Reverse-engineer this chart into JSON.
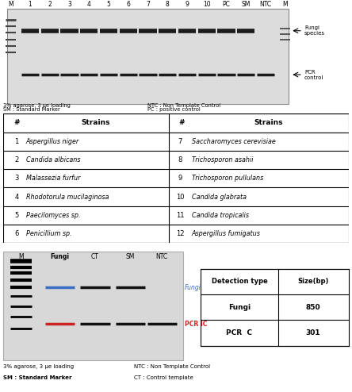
{
  "gel_labels_top": [
    "M",
    "1",
    "2",
    "3",
    "4",
    "5",
    "6",
    "7",
    "8",
    "9",
    "10",
    "PC",
    "SM",
    "NTC",
    "M"
  ],
  "gel_bg": "#dcdcdc",
  "band_row1_color": "#1a1a1a",
  "band_row2_color": "#1a1a1a",
  "marker_color": "#444444",
  "arrow_label1": "Fungi\nspecies",
  "arrow_label2": "PCR\ncontrol",
  "note_line1": "3% agarose, 3 μe loading",
  "note_line2": "SM : Standard Marker",
  "note_line3": "NTC : Non Template Control",
  "note_line4": "PC : positive control",
  "table_rows": [
    [
      "1",
      "Aspergillus niger",
      "7",
      "Saccharomyces cerevisiae"
    ],
    [
      "2",
      "Candida albicans",
      "8",
      "Trichosporon asahii"
    ],
    [
      "3",
      "Malassezia furfur",
      "9",
      "Trichosporon pullulans"
    ],
    [
      "4",
      "Rhodotorula mucilaginosa",
      "10",
      "Candida glabrata"
    ],
    [
      "5",
      "Paecilomyces sp.",
      "11",
      "Candida tropicalis"
    ],
    [
      "6",
      "Penicillium sp.",
      "12",
      "Aspergillus fumigatus"
    ]
  ],
  "diagram_labels_top": [
    "M",
    "Fungi",
    "CT",
    "SM",
    "NTC"
  ],
  "diagram_bg": "#d8d8d8",
  "fungi_line_color": "#3a6fc4",
  "pcric_line_color": "#cc2222",
  "black_line_color": "#111111",
  "fungi_label_color": "#3a6fc4",
  "pcric_label_color": "#cc2222",
  "detect_table_rows": [
    [
      "Fungi",
      "850"
    ],
    [
      "PCR  C",
      "301"
    ]
  ],
  "note2_line1": "3% agarose, 3 μe loading",
  "note2_line2": "SM : Standard Marker",
  "note2_line3": "NTC : Non Template Control",
  "note2_line4": "CT : Control template"
}
